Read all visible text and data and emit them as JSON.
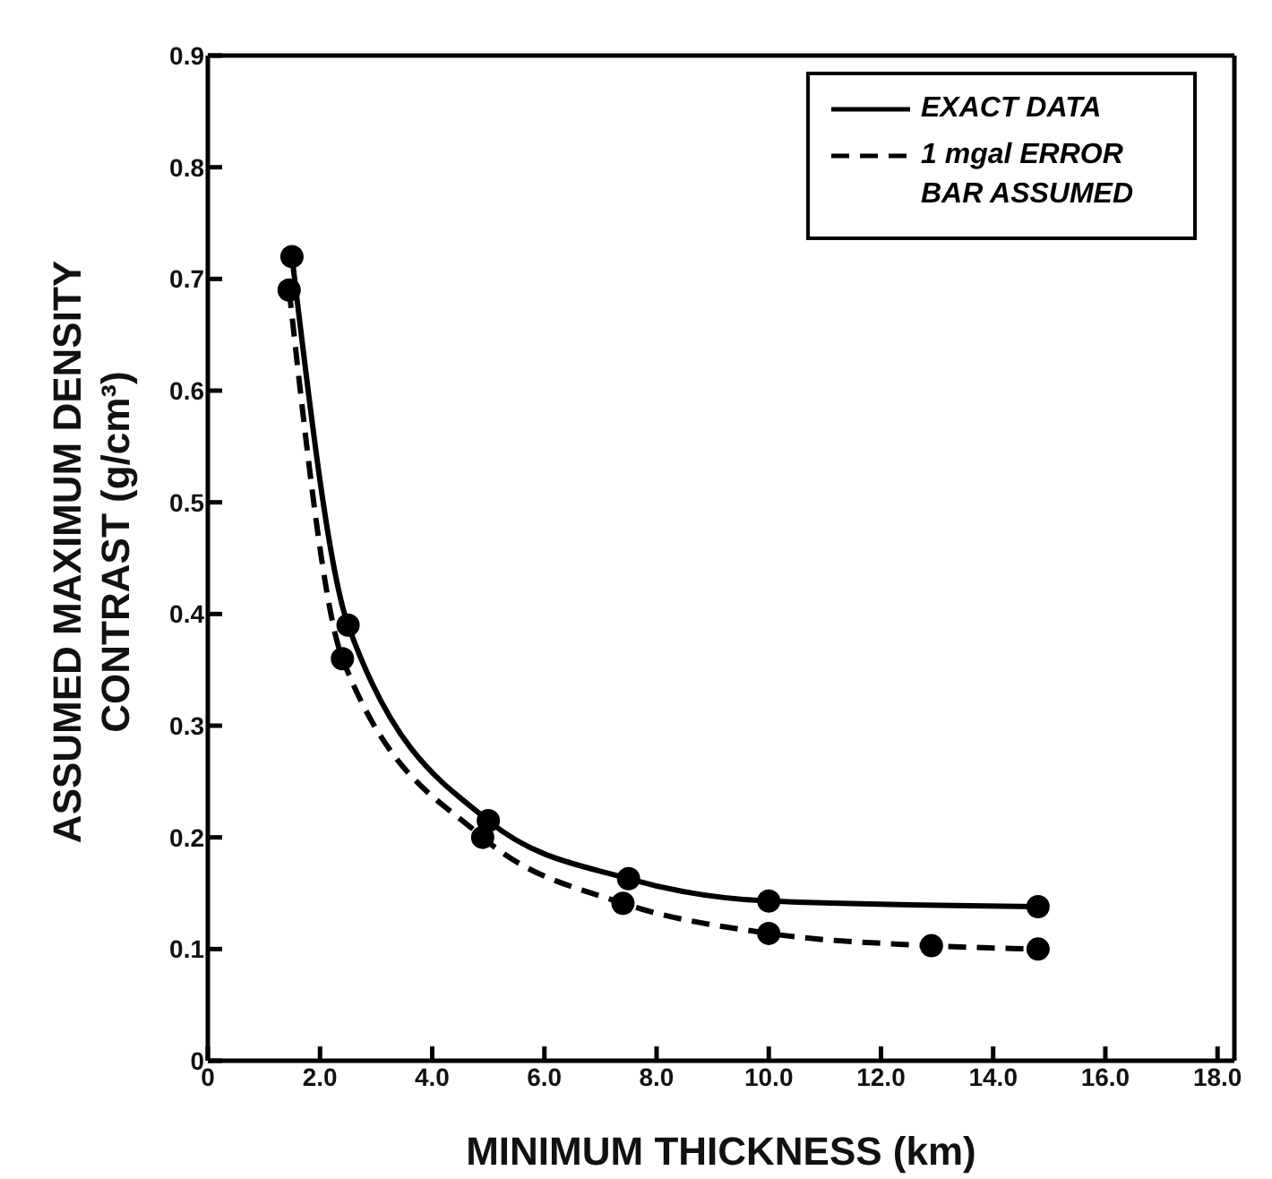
{
  "chart_data": {
    "type": "line",
    "xlabel": "MINIMUM THICKNESS (km)",
    "ylabel": "ASSUMED MAXIMUM DENSITY CONTRAST (g/cm³)",
    "xlim": [
      0,
      18.3
    ],
    "ylim": [
      0,
      0.9
    ],
    "xticks": [
      0,
      {
        "value": 2,
        "label": "2.0"
      },
      {
        "value": 4,
        "label": "4.0"
      },
      {
        "value": 6,
        "label": "6.0"
      },
      {
        "value": 8,
        "label": "8.0"
      },
      {
        "value": 10,
        "label": "10.0"
      },
      {
        "value": 12,
        "label": "12.0"
      },
      {
        "value": 14,
        "label": "14.0"
      },
      {
        "value": 16,
        "label": "16.0"
      },
      {
        "value": 18,
        "label": "18.0"
      }
    ],
    "yticks": [
      0,
      0.1,
      0.2,
      0.3,
      0.4,
      0.5,
      0.6,
      0.7,
      0.8,
      0.9
    ],
    "series": [
      {
        "name": "EXACT DATA",
        "color": "#000000",
        "line_style": "solid",
        "x": [
          1.5,
          2.5,
          5.0,
          7.5,
          10,
          14.8
        ],
        "values": [
          0.72,
          0.39,
          0.215,
          0.163,
          0.143,
          0.138
        ]
      },
      {
        "name": "1 mgal ERROR BAR ASSUMED",
        "color": "#000000",
        "line_style": "dashed",
        "x": [
          1.45,
          2.4,
          4.9,
          7.4,
          10,
          12.9,
          14.8
        ],
        "values": [
          0.69,
          0.36,
          0.2,
          0.141,
          0.114,
          0.103,
          0.1
        ]
      }
    ],
    "marker": "circle",
    "legend": "top right"
  }
}
